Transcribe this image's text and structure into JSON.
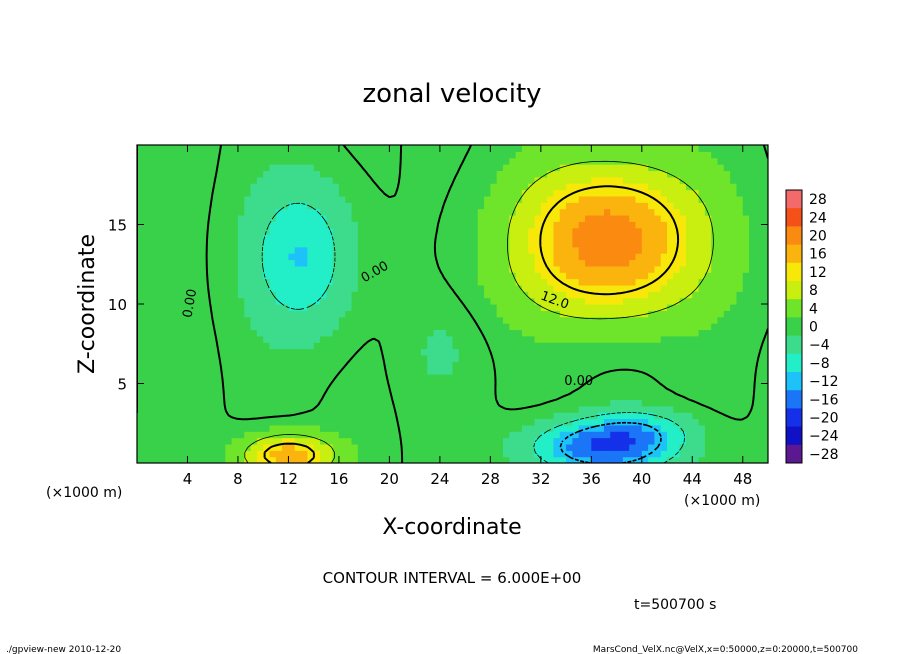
{
  "chart_data": {
    "type": "heatmap",
    "title": "zonal velocity",
    "xlabel": "X-coordinate",
    "ylabel": "Z-coordinate",
    "x_unit": "(×1000 m)",
    "y_unit": "(×1000 m)",
    "xlim": [
      0,
      50
    ],
    "ylim": [
      0,
      20
    ],
    "x_ticks": [
      "4",
      "8",
      "12",
      "16",
      "20",
      "24",
      "28",
      "32",
      "36",
      "40",
      "44",
      "48"
    ],
    "y_ticks": [
      "5",
      "10",
      "15"
    ],
    "colorbar_levels": [
      "28",
      "24",
      "20",
      "16",
      "12",
      "8",
      "4",
      "0",
      "−4",
      "−8",
      "−12",
      "−16",
      "−20",
      "−24",
      "−28"
    ],
    "colorbar_colors": [
      "#f46a6a",
      "#f45018",
      "#fa8a10",
      "#fbb40e",
      "#f8e80a",
      "#c8ef10",
      "#6ee42a",
      "#39d14a",
      "#3cdc8c",
      "#22eec8",
      "#1cc2f8",
      "#1a76f6",
      "#1430e8",
      "#1010c4",
      "#5c1890"
    ],
    "contour_labels": [
      "0.00",
      "0.00",
      "0.00",
      "12.0"
    ],
    "contour_interval_text": "CONTOUR INTERVAL = 6.000E+00",
    "time_text": "t=500700 s",
    "blobs": [
      {
        "x": 37.5,
        "z": 14.5,
        "sx": 7,
        "sz": 4.2,
        "value": 20
      },
      {
        "x": 37.0,
        "z": 11.0,
        "sx": 8,
        "sz": 3,
        "value": 4
      },
      {
        "x": 13.0,
        "z": 13.0,
        "sx": 4.0,
        "sz": 4.5,
        "value": -10
      },
      {
        "x": 12.0,
        "z": 0.5,
        "sx": 3.5,
        "sz": 1.3,
        "value": 17
      },
      {
        "x": 37.0,
        "z": 1.0,
        "sx": 5.5,
        "sz": 1.6,
        "value": -18
      },
      {
        "x": 40.0,
        "z": 2.2,
        "sx": 4,
        "sz": 1.2,
        "value": -6
      },
      {
        "x": 24.0,
        "z": 7.0,
        "sx": 3,
        "sz": 3,
        "value": -2
      }
    ]
  },
  "footer": {
    "left": "./gpview-new   2010-12-20",
    "right": "MarsCond_VelX.nc@VelX,x=0:50000,z=0:20000,t=500700"
  }
}
